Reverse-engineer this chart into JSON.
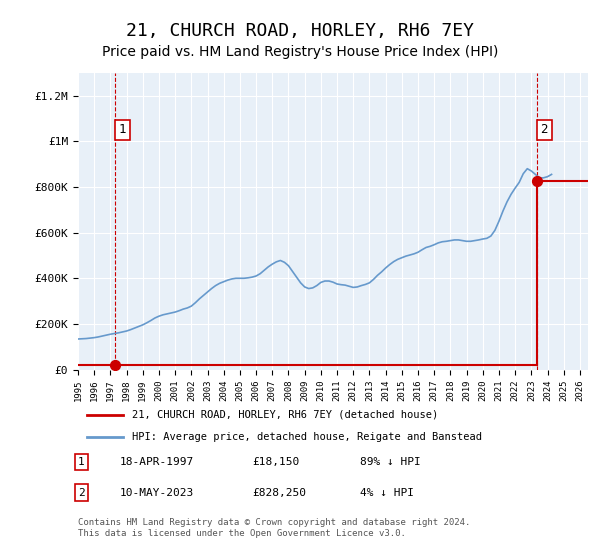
{
  "title": "21, CHURCH ROAD, HORLEY, RH6 7EY",
  "subtitle": "Price paid vs. HM Land Registry's House Price Index (HPI)",
  "xlabel": "",
  "ylabel": "",
  "ylim": [
    0,
    1300000
  ],
  "xlim_start": 1995.0,
  "xlim_end": 2026.5,
  "yticks": [
    0,
    200000,
    400000,
    600000,
    800000,
    1000000,
    1200000
  ],
  "ytick_labels": [
    "£0",
    "£200K",
    "£400K",
    "£600K",
    "£800K",
    "£1M",
    "£1.2M"
  ],
  "xticks": [
    1995,
    1996,
    1997,
    1998,
    1999,
    2000,
    2001,
    2002,
    2003,
    2004,
    2005,
    2006,
    2007,
    2008,
    2009,
    2010,
    2011,
    2012,
    2013,
    2014,
    2015,
    2016,
    2017,
    2018,
    2019,
    2020,
    2021,
    2022,
    2023,
    2024,
    2025,
    2026
  ],
  "background_color": "#e8f0f8",
  "plot_bg_color": "#e8f0f8",
  "grid_color": "#ffffff",
  "sale1_x": 1997.3,
  "sale1_y": 18150,
  "sale1_label": "1",
  "sale2_x": 2023.37,
  "sale2_y": 828250,
  "sale2_label": "2",
  "hpi_color": "#6699cc",
  "sale_color": "#cc0000",
  "dashed_color": "#cc0000",
  "legend_label_sale": "21, CHURCH ROAD, HORLEY, RH6 7EY (detached house)",
  "legend_label_hpi": "HPI: Average price, detached house, Reigate and Banstead",
  "table_row1": [
    "1",
    "18-APR-1997",
    "£18,150",
    "89% ↓ HPI"
  ],
  "table_row2": [
    "2",
    "10-MAY-2023",
    "£828,250",
    "4% ↓ HPI"
  ],
  "footer": "Contains HM Land Registry data © Crown copyright and database right 2024.\nThis data is licensed under the Open Government Licence v3.0.",
  "title_fontsize": 13,
  "subtitle_fontsize": 10,
  "tick_fontsize": 8,
  "hpi_data_x": [
    1995.0,
    1995.25,
    1995.5,
    1995.75,
    1996.0,
    1996.25,
    1996.5,
    1996.75,
    1997.0,
    1997.25,
    1997.5,
    1997.75,
    1998.0,
    1998.25,
    1998.5,
    1998.75,
    1999.0,
    1999.25,
    1999.5,
    1999.75,
    2000.0,
    2000.25,
    2000.5,
    2000.75,
    2001.0,
    2001.25,
    2001.5,
    2001.75,
    2002.0,
    2002.25,
    2002.5,
    2002.75,
    2003.0,
    2003.25,
    2003.5,
    2003.75,
    2004.0,
    2004.25,
    2004.5,
    2004.75,
    2005.0,
    2005.25,
    2005.5,
    2005.75,
    2006.0,
    2006.25,
    2006.5,
    2006.75,
    2007.0,
    2007.25,
    2007.5,
    2007.75,
    2008.0,
    2008.25,
    2008.5,
    2008.75,
    2009.0,
    2009.25,
    2009.5,
    2009.75,
    2010.0,
    2010.25,
    2010.5,
    2010.75,
    2011.0,
    2011.25,
    2011.5,
    2011.75,
    2012.0,
    2012.25,
    2012.5,
    2012.75,
    2013.0,
    2013.25,
    2013.5,
    2013.75,
    2014.0,
    2014.25,
    2014.5,
    2014.75,
    2015.0,
    2015.25,
    2015.5,
    2015.75,
    2016.0,
    2016.25,
    2016.5,
    2016.75,
    2017.0,
    2017.25,
    2017.5,
    2017.75,
    2018.0,
    2018.25,
    2018.5,
    2018.75,
    2019.0,
    2019.25,
    2019.5,
    2019.75,
    2020.0,
    2020.25,
    2020.5,
    2020.75,
    2021.0,
    2021.25,
    2021.5,
    2021.75,
    2022.0,
    2022.25,
    2022.5,
    2022.75,
    2023.0,
    2023.25,
    2023.5,
    2023.75,
    2024.0,
    2024.25
  ],
  "hpi_data_y": [
    134000,
    135000,
    136000,
    138000,
    140000,
    143000,
    147000,
    151000,
    155000,
    158000,
    161000,
    165000,
    169000,
    175000,
    182000,
    189000,
    196000,
    205000,
    215000,
    226000,
    234000,
    240000,
    244000,
    248000,
    252000,
    258000,
    265000,
    270000,
    278000,
    293000,
    310000,
    325000,
    340000,
    355000,
    368000,
    378000,
    385000,
    392000,
    397000,
    400000,
    400000,
    400000,
    402000,
    405000,
    410000,
    420000,
    435000,
    450000,
    462000,
    472000,
    478000,
    470000,
    455000,
    430000,
    405000,
    380000,
    362000,
    355000,
    358000,
    368000,
    382000,
    388000,
    388000,
    383000,
    375000,
    372000,
    370000,
    365000,
    360000,
    362000,
    368000,
    373000,
    380000,
    395000,
    413000,
    428000,
    445000,
    460000,
    473000,
    483000,
    490000,
    497000,
    502000,
    507000,
    514000,
    525000,
    535000,
    540000,
    547000,
    555000,
    560000,
    562000,
    565000,
    568000,
    568000,
    565000,
    562000,
    562000,
    565000,
    568000,
    572000,
    575000,
    585000,
    610000,
    650000,
    695000,
    735000,
    768000,
    795000,
    820000,
    858000,
    880000,
    870000,
    855000,
    840000,
    840000,
    845000,
    855000
  ]
}
